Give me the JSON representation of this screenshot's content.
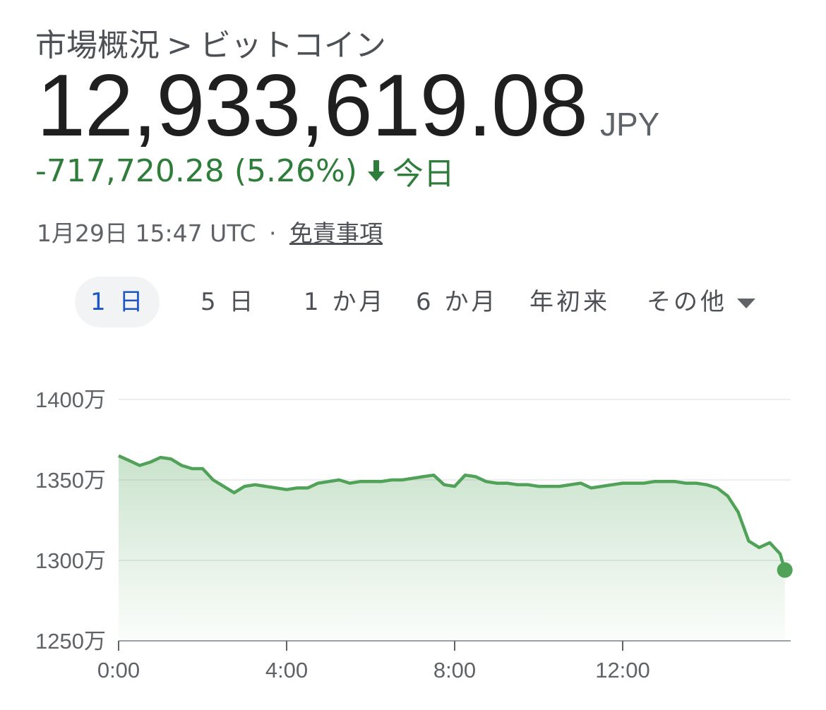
{
  "breadcrumb": {
    "parent": "市場概況",
    "separator": ">",
    "current": "ビットコイン"
  },
  "quote": {
    "price": "12,933,619.08",
    "currency": "JPY",
    "change": "-717,720.28",
    "change_percent": "(5.26%)",
    "period": "今日",
    "timestamp": "1月29日 15:47 UTC",
    "meta_separator": "·",
    "disclaimer": "免責事項"
  },
  "colors": {
    "line": "#4fa257",
    "change_text": "#2f7d3a",
    "active_tab": "#1a56c7",
    "grid": "#eeeeee"
  },
  "range_tabs": [
    {
      "label": "1 日",
      "active": true
    },
    {
      "label": "5 日",
      "active": false
    },
    {
      "label": "1 か月",
      "active": false
    },
    {
      "label": "6 か月",
      "active": false
    },
    {
      "label": "年初来",
      "active": false
    },
    {
      "label": "その他",
      "active": false,
      "dropdown": true
    }
  ],
  "chart_data": {
    "type": "area",
    "y_ticks": [
      {
        "value": 1400,
        "label": "1400万"
      },
      {
        "value": 1350,
        "label": "1350万"
      },
      {
        "value": 1300,
        "label": "1300万"
      },
      {
        "value": 1250,
        "label": "1250万"
      }
    ],
    "x_ticks": [
      {
        "value": 0,
        "label": "0:00"
      },
      {
        "value": 4,
        "label": "4:00"
      },
      {
        "value": 8,
        "label": "8:00"
      },
      {
        "value": 12,
        "label": "12:00"
      }
    ],
    "xlim": [
      0,
      16
    ],
    "ylim": [
      1250,
      1400
    ],
    "grid": true,
    "series": [
      {
        "x": [
          0,
          0.25,
          0.5,
          0.75,
          1.0,
          1.25,
          1.5,
          1.75,
          2.0,
          2.25,
          2.5,
          2.75,
          3.0,
          3.25,
          3.5,
          3.75,
          4.0,
          4.25,
          4.5,
          4.75,
          5.0,
          5.25,
          5.5,
          5.75,
          6.0,
          6.25,
          6.5,
          6.75,
          7.0,
          7.25,
          7.5,
          7.75,
          8.0,
          8.25,
          8.5,
          8.75,
          9.0,
          9.25,
          9.5,
          9.75,
          10.0,
          10.25,
          10.5,
          10.75,
          11.0,
          11.25,
          11.5,
          11.75,
          12.0,
          12.25,
          12.5,
          12.75,
          13.0,
          13.25,
          13.5,
          13.75,
          14.0,
          14.25,
          14.5,
          14.75,
          15.0,
          15.25,
          15.5,
          15.75,
          15.86
        ],
        "values": [
          1365,
          1362,
          1359,
          1361,
          1364,
          1363,
          1359,
          1357,
          1357,
          1350,
          1346,
          1342,
          1346,
          1347,
          1346,
          1345,
          1344,
          1345,
          1345,
          1348,
          1349,
          1350,
          1348,
          1349,
          1349,
          1349,
          1350,
          1350,
          1351,
          1352,
          1353,
          1347,
          1346,
          1353,
          1352,
          1349,
          1348,
          1348,
          1347,
          1347,
          1346,
          1346,
          1346,
          1347,
          1348,
          1345,
          1346,
          1347,
          1348,
          1348,
          1348,
          1349,
          1349,
          1349,
          1348,
          1348,
          1347,
          1345,
          1340,
          1330,
          1312,
          1308,
          1311,
          1304,
          1294
        ]
      }
    ]
  }
}
